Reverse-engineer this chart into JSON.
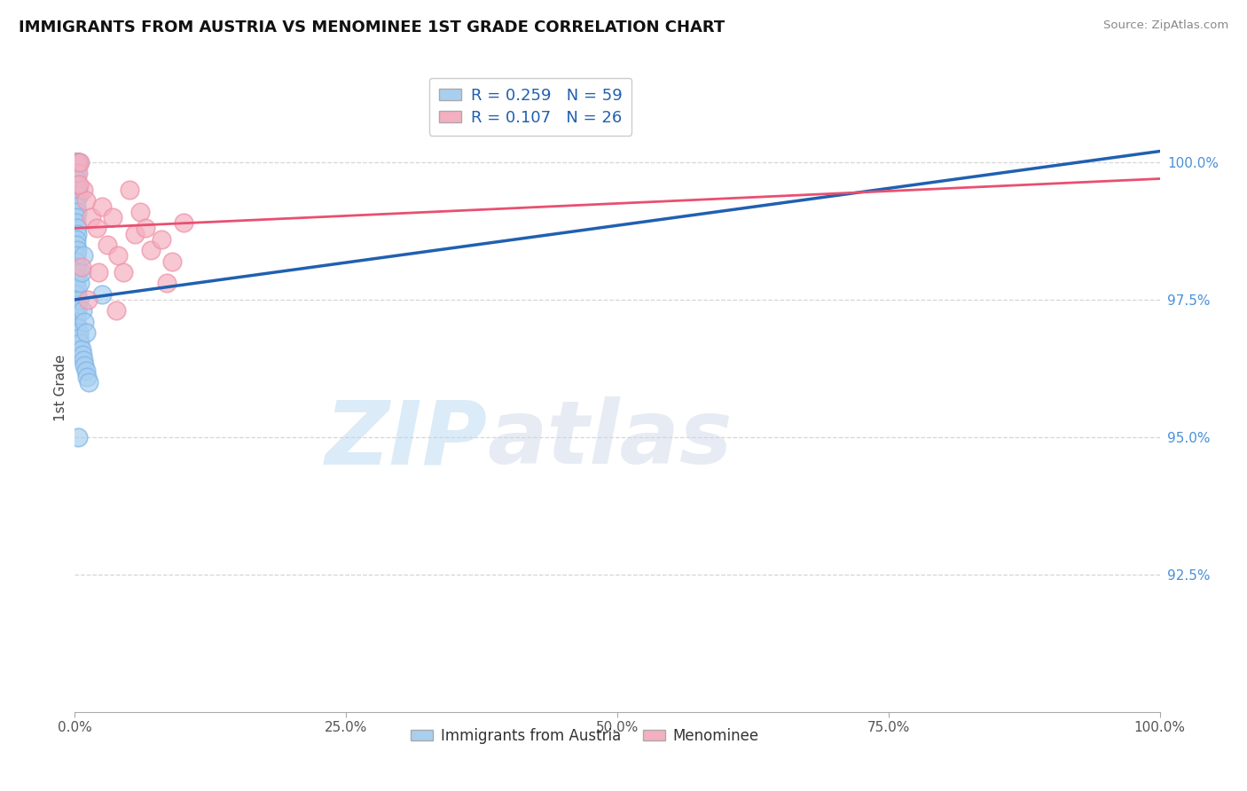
{
  "title": "IMMIGRANTS FROM AUSTRIA VS MENOMINEE 1ST GRADE CORRELATION CHART",
  "source_text": "Source: ZipAtlas.com",
  "ylabel": "1st Grade",
  "xlim": [
    0.0,
    100.0
  ],
  "ylim": [
    90.0,
    101.8
  ],
  "yticks": [
    92.5,
    95.0,
    97.5,
    100.0
  ],
  "xticks": [
    0.0,
    25.0,
    50.0,
    75.0,
    100.0
  ],
  "xtick_labels": [
    "0.0%",
    "25.0%",
    "50.0%",
    "75.0%",
    "100.0%"
  ],
  "ytick_labels": [
    "92.5%",
    "95.0%",
    "97.5%",
    "100.0%"
  ],
  "blue_R": 0.259,
  "blue_N": 59,
  "pink_R": 0.107,
  "pink_N": 26,
  "blue_color": "#a8cff0",
  "pink_color": "#f4b0c0",
  "blue_edge_color": "#7eb5e8",
  "pink_edge_color": "#f090a8",
  "blue_line_color": "#2060b0",
  "pink_line_color": "#e85070",
  "watermark_zip": "ZIP",
  "watermark_atlas": "atlas",
  "blue_scatter_x": [
    0.15,
    0.2,
    0.25,
    0.3,
    0.35,
    0.1,
    0.15,
    0.2,
    0.25,
    0.3,
    0.1,
    0.15,
    0.2,
    0.25,
    0.3,
    0.35,
    0.1,
    0.15,
    0.2,
    0.1,
    0.15,
    0.2,
    0.25,
    0.1,
    0.15,
    0.2,
    0.1,
    0.15,
    0.2,
    0.25,
    0.1,
    0.15,
    0.2,
    0.1,
    0.15,
    0.2,
    0.25,
    0.1,
    0.15,
    0.2,
    0.35,
    0.4,
    0.5,
    0.6,
    0.7,
    0.8,
    0.9,
    1.0,
    1.1,
    1.3,
    0.4,
    0.5,
    0.6,
    0.7,
    0.8,
    0.9,
    1.0,
    2.5,
    0.3
  ],
  "blue_scatter_y": [
    100.0,
    100.0,
    100.0,
    100.0,
    100.0,
    100.0,
    100.0,
    100.0,
    100.0,
    100.0,
    99.8,
    99.7,
    99.6,
    99.5,
    99.5,
    99.4,
    99.3,
    99.2,
    99.1,
    99.0,
    98.9,
    98.8,
    98.7,
    98.6,
    98.5,
    98.4,
    98.3,
    98.2,
    98.1,
    98.0,
    97.9,
    97.8,
    97.7,
    97.6,
    97.5,
    97.4,
    97.3,
    97.2,
    97.1,
    97.0,
    96.9,
    96.8,
    96.7,
    96.6,
    96.5,
    96.4,
    96.3,
    96.2,
    96.1,
    96.0,
    97.5,
    97.8,
    98.0,
    97.3,
    98.3,
    97.1,
    96.9,
    97.6,
    95.0
  ],
  "pink_scatter_x": [
    0.2,
    0.3,
    0.5,
    0.8,
    1.0,
    1.5,
    2.0,
    2.5,
    3.0,
    3.5,
    4.0,
    4.5,
    5.0,
    5.5,
    6.0,
    7.0,
    8.0,
    9.0,
    10.0,
    0.4,
    0.6,
    1.2,
    2.2,
    3.8,
    6.5,
    8.5
  ],
  "pink_scatter_y": [
    100.0,
    99.8,
    100.0,
    99.5,
    99.3,
    99.0,
    98.8,
    99.2,
    98.5,
    99.0,
    98.3,
    98.0,
    99.5,
    98.7,
    99.1,
    98.4,
    98.6,
    98.2,
    98.9,
    99.6,
    98.1,
    97.5,
    98.0,
    97.3,
    98.8,
    97.8
  ],
  "blue_line_x0": 0.0,
  "blue_line_x1": 100.0,
  "blue_line_y0": 97.5,
  "blue_line_y1": 100.2,
  "pink_line_x0": 0.0,
  "pink_line_x1": 100.0,
  "pink_line_y0": 98.8,
  "pink_line_y1": 99.7
}
